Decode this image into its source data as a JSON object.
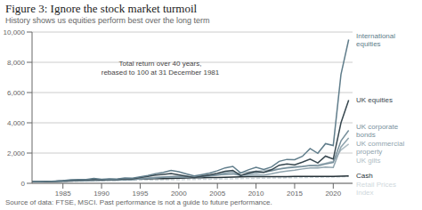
{
  "chart_data": {
    "type": "line",
    "title": "Figure 3: Ignore the stock market turmoil",
    "subtitle": "History shows us equities perform best over the long term",
    "annotation": "Total return over 40 years,\nrebased to 100 at 31 December 1981",
    "source": "Source of data: FTSE, MSCI. Past performance is not a guide to future performance.",
    "x": [
      1981,
      1982,
      1983,
      1984,
      1985,
      1986,
      1987,
      1988,
      1989,
      1990,
      1991,
      1992,
      1993,
      1994,
      1995,
      1996,
      1997,
      1998,
      1999,
      2000,
      2001,
      2002,
      2003,
      2004,
      2005,
      2006,
      2007,
      2008,
      2009,
      2010,
      2011,
      2012,
      2013,
      2014,
      2015,
      2016,
      2017,
      2018,
      2019,
      2020,
      2021,
      2022
    ],
    "series": [
      {
        "name": "Retail Prices\nIndex",
        "color": "#cfd8dc",
        "line_style": "dashed",
        "values": [
          100,
          106,
          113,
          120,
          128,
          136,
          141,
          150,
          162,
          174,
          184,
          190,
          196,
          202,
          211,
          217,
          222,
          228,
          233,
          240,
          247,
          254,
          262,
          270,
          281,
          291,
          300,
          313,
          321,
          328,
          340,
          348,
          356,
          363,
          370,
          382,
          390,
          398,
          406,
          418,
          432,
          455
        ]
      },
      {
        "name": "Cash",
        "color": "#263238",
        "values": [
          100,
          110,
          122,
          133,
          146,
          160,
          173,
          186,
          208,
          228,
          246,
          256,
          266,
          273,
          283,
          291,
          303,
          316,
          328,
          343,
          356,
          366,
          373,
          380,
          388,
          398,
          413,
          430,
          438,
          441,
          443,
          445,
          447,
          448,
          449,
          450,
          452,
          453,
          456,
          458,
          468,
          480
        ]
      },
      {
        "name": "UK gilts",
        "color": "#b0bec5",
        "values": [
          100,
          110,
          123,
          128,
          143,
          163,
          173,
          183,
          203,
          228,
          253,
          268,
          302,
          282,
          328,
          358,
          393,
          433,
          458,
          468,
          463,
          473,
          508,
          533,
          563,
          588,
          618,
          688,
          748,
          788,
          838,
          908,
          958,
          1038,
          1098,
          1128,
          1178,
          1228,
          1328,
          1450,
          2200,
          2600
        ]
      },
      {
        "name": "UK commercial\nproperty",
        "color": "#90a4ae",
        "values": [
          100,
          103,
          108,
          118,
          133,
          153,
          178,
          208,
          258,
          248,
          228,
          218,
          252,
          262,
          302,
          338,
          388,
          418,
          448,
          458,
          438,
          408,
          448,
          498,
          578,
          698,
          758,
          558,
          508,
          555,
          538,
          628,
          738,
          808,
          868,
          948,
          1018,
          1008,
          1068,
          1050,
          2400,
          3000
        ]
      },
      {
        "name": "UK corporate\nbonds",
        "color": "#78909c",
        "values": [
          100,
          108,
          118,
          128,
          140,
          158,
          164,
          172,
          192,
          188,
          208,
          213,
          248,
          238,
          288,
          318,
          358,
          398,
          428,
          418,
          408,
          398,
          448,
          488,
          538,
          598,
          638,
          518,
          618,
          698,
          728,
          818,
          938,
          1018,
          1058,
          1098,
          1178,
          1148,
          1278,
          1380,
          2800,
          3500
        ]
      },
      {
        "name": "UK equities",
        "color": "#37474f",
        "values": [
          100,
          97,
          118,
          133,
          155,
          195,
          205,
          225,
          268,
          215,
          262,
          252,
          305,
          292,
          385,
          455,
          545,
          595,
          648,
          555,
          468,
          375,
          468,
          555,
          658,
          798,
          858,
          515,
          675,
          798,
          725,
          895,
          1195,
          1275,
          1225,
          1395,
          1595,
          1345,
          1795,
          1600,
          4000,
          5500
        ]
      },
      {
        "name": "International\nequities",
        "color": "#607d8b",
        "values": [
          100,
          98,
          125,
          150,
          175,
          240,
          255,
          245,
          320,
          270,
          295,
          285,
          355,
          345,
          430,
          515,
          640,
          720,
          850,
          760,
          620,
          490,
          580,
          680,
          830,
          1020,
          1120,
          680,
          890,
          1050,
          910,
          1080,
          1450,
          1580,
          1560,
          1780,
          2300,
          1980,
          2620,
          2500,
          7200,
          9500
        ]
      }
    ],
    "xlim": [
      1981,
      2022.5
    ],
    "xticks": [
      1985,
      1990,
      1995,
      2000,
      2005,
      2010,
      2015,
      2020
    ],
    "ylim": [
      0,
      10000
    ],
    "yticks": [
      0,
      {
        "value": 2000,
        "label": "2,000"
      },
      {
        "value": 4000,
        "label": "4,000"
      },
      {
        "value": 6000,
        "label": "6,000"
      },
      {
        "value": 8000,
        "label": "8,000"
      },
      {
        "value": 10000,
        "label": "10,000"
      }
    ],
    "grid": true
  }
}
